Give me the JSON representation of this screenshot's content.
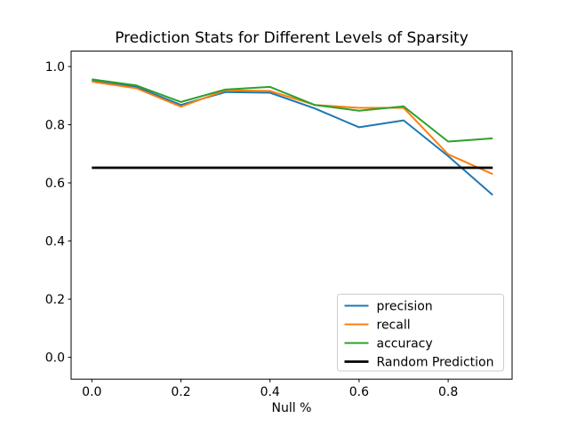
{
  "chart_data": {
    "type": "line",
    "title": "Prediction Stats for Different Levels of Sparsity",
    "xlabel": "Null %",
    "ylabel": "",
    "x": [
      0.0,
      0.1,
      0.2,
      0.3,
      0.4,
      0.5,
      0.6,
      0.7,
      0.8,
      0.9
    ],
    "series": [
      {
        "name": "precision",
        "color": "#1f77b4",
        "values": [
          0.953,
          0.93,
          0.868,
          0.912,
          0.91,
          0.856,
          0.791,
          0.815,
          0.692,
          0.558
        ]
      },
      {
        "name": "recall",
        "color": "#ff7f0e",
        "values": [
          0.948,
          0.925,
          0.862,
          0.918,
          0.916,
          0.868,
          0.858,
          0.858,
          0.698,
          0.63
        ]
      },
      {
        "name": "accuracy",
        "color": "#2ca02c",
        "values": [
          0.956,
          0.935,
          0.878,
          0.921,
          0.93,
          0.868,
          0.848,
          0.863,
          0.742,
          0.753
        ]
      },
      {
        "name": "Random Prediction",
        "color": "#000000",
        "values": [
          0.652,
          0.652,
          0.652,
          0.652,
          0.652,
          0.652,
          0.652,
          0.652,
          0.652,
          0.652
        ]
      }
    ],
    "xlim": [
      -0.0465,
      0.9435
    ],
    "ylim": [
      -0.075,
      1.053
    ],
    "xticks": {
      "values": [
        0.0,
        0.2,
        0.4,
        0.6,
        0.8
      ],
      "labels": [
        "0.0",
        "0.2",
        "0.4",
        "0.6",
        "0.8"
      ]
    },
    "yticks": {
      "values": [
        0.0,
        0.2,
        0.4,
        0.6,
        0.8,
        1.0
      ],
      "labels": [
        "0.0",
        "0.2",
        "0.4",
        "0.6",
        "0.8",
        "1.0"
      ]
    },
    "legend": {
      "position": "lower right",
      "entries": [
        "precision",
        "recall",
        "accuracy",
        "Random Prediction"
      ]
    },
    "grid": false,
    "background": "#ffffff"
  }
}
